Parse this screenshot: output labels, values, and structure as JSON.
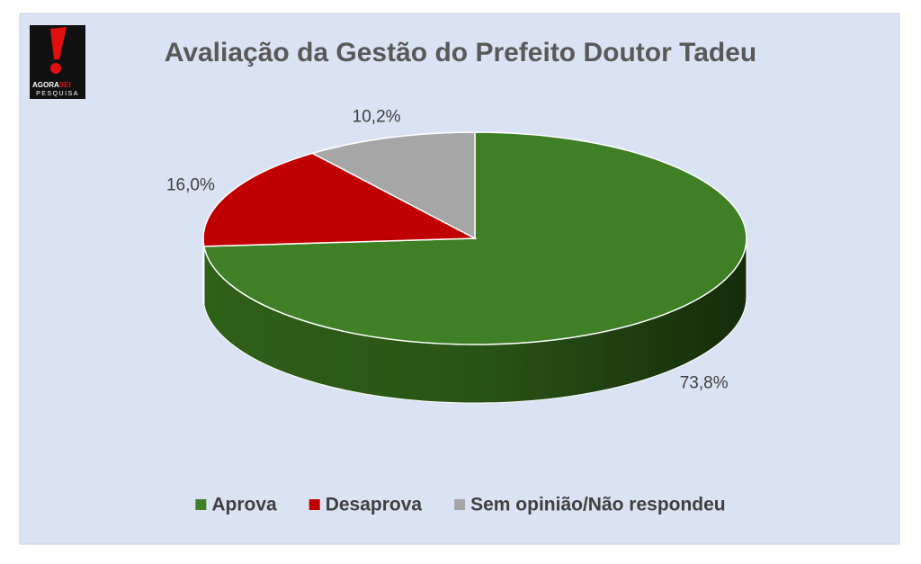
{
  "logo": [
    "AGORA",
    "SEI",
    "PESQUISA"
  ],
  "chart_data": {
    "type": "pie",
    "title": "Avaliação da Gestão do Prefeito Doutor Tadeu",
    "categories": [
      "Aprova",
      "Desaprova",
      "Sem opinião/Não respondeu"
    ],
    "values": [
      73.8,
      16.0,
      10.2
    ],
    "value_labels": [
      "73,8%",
      "16,0%",
      "10,2%"
    ],
    "colors": [
      "#3f7f25",
      "#c00000",
      "#a6a6a6"
    ],
    "legend": "bottom"
  }
}
